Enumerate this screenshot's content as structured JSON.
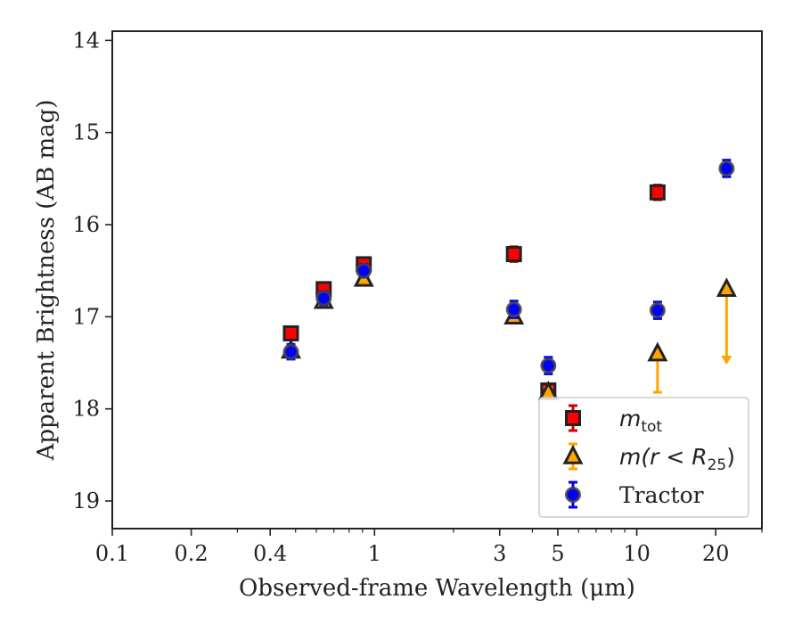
{
  "chart_data": {
    "type": "scatter",
    "title": "",
    "xlabel": "Observed-frame Wavelength (μm)",
    "ylabel": "Apparent Brightness (AB mag)",
    "x_scale": "log",
    "xlim": [
      0.1,
      30
    ],
    "ylim": [
      19.3,
      13.9
    ],
    "y_inverted": true,
    "grid": false,
    "legend_position": "bottom-right",
    "x_ticks": [
      {
        "value": 0.1,
        "label": "0.1"
      },
      {
        "value": 0.2,
        "label": "0.2"
      },
      {
        "value": 0.4,
        "label": "0.4"
      },
      {
        "value": 1,
        "label": "1"
      },
      {
        "value": 3,
        "label": "3"
      },
      {
        "value": 5,
        "label": "5"
      },
      {
        "value": 10,
        "label": "10"
      },
      {
        "value": 20,
        "label": "20"
      }
    ],
    "y_ticks": [
      {
        "value": 14,
        "label": "14"
      },
      {
        "value": 15,
        "label": "15"
      },
      {
        "value": 16,
        "label": "16"
      },
      {
        "value": 17,
        "label": "17"
      },
      {
        "value": 18,
        "label": "18"
      },
      {
        "value": 19,
        "label": "19"
      }
    ],
    "series": [
      {
        "name": "m_tot",
        "legend_label": {
          "base": "m",
          "sub": "tot"
        },
        "marker": "square",
        "color": "#ff0000",
        "edge_color": "#222222",
        "error_color": "#cc0000",
        "points": [
          {
            "x": 0.48,
            "y": 17.18,
            "err": 0.07
          },
          {
            "x": 0.64,
            "y": 16.7,
            "err": 0.07
          },
          {
            "x": 0.91,
            "y": 16.43,
            "err": 0.07
          },
          {
            "x": 3.4,
            "y": 16.32,
            "err": 0.08
          },
          {
            "x": 4.6,
            "y": 17.8,
            "err": 0.06
          },
          {
            "x": 12.0,
            "y": 15.65,
            "err": 0.08
          }
        ]
      },
      {
        "name": "m(r < R25)",
        "legend_label": {
          "base": "m(r < R",
          "sub": "25",
          "tail": ")"
        },
        "marker": "triangle",
        "color": "#ffa500",
        "edge_color": "#222222",
        "error_color": "#ffa500",
        "points": [
          {
            "x": 0.48,
            "y": 17.37,
            "err": 0.05
          },
          {
            "x": 0.64,
            "y": 16.83,
            "err": 0.05
          },
          {
            "x": 0.91,
            "y": 16.59,
            "err": 0.05
          },
          {
            "x": 3.4,
            "y": 17.0,
            "err": 0.05
          },
          {
            "x": 4.6,
            "y": 17.82,
            "err": 0.05
          },
          {
            "x": 12.0,
            "y": 17.4,
            "err_lower": 0.42
          },
          {
            "x": 22.0,
            "y": 16.7,
            "upper_limit_to": 17.5
          }
        ]
      },
      {
        "name": "Tractor",
        "legend_label": {
          "base": "Tractor"
        },
        "marker": "circle",
        "color": "#0000ff",
        "edge_color": "#444444",
        "error_color": "#0000ee",
        "points": [
          {
            "x": 0.48,
            "y": 17.38,
            "err": 0.08
          },
          {
            "x": 0.64,
            "y": 16.8,
            "err": 0.07
          },
          {
            "x": 0.91,
            "y": 16.5,
            "err": 0.07
          },
          {
            "x": 3.4,
            "y": 16.92,
            "err": 0.09
          },
          {
            "x": 4.6,
            "y": 17.53,
            "err": 0.09
          },
          {
            "x": 12.0,
            "y": 16.93,
            "err": 0.09
          },
          {
            "x": 22.0,
            "y": 15.39,
            "err": 0.09
          }
        ]
      }
    ]
  }
}
